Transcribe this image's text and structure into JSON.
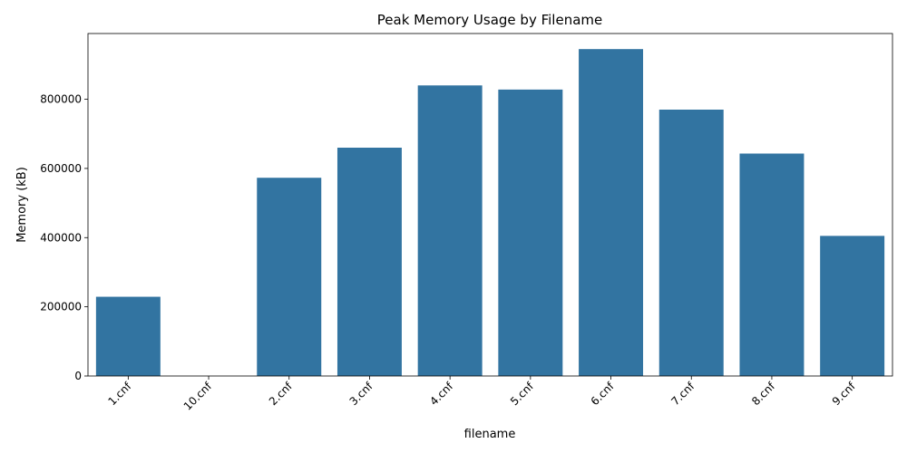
{
  "chart_data": {
    "type": "bar",
    "title": "Peak Memory Usage by Filename",
    "xlabel": "filename",
    "ylabel": "Memory (kB)",
    "categories": [
      "1.cnf",
      "10.cnf",
      "2.cnf",
      "3.cnf",
      "4.cnf",
      "5.cnf",
      "6.cnf",
      "7.cnf",
      "8.cnf",
      "9.cnf"
    ],
    "values": [
      229000,
      0,
      573000,
      660000,
      840000,
      828000,
      945000,
      770000,
      643000,
      405000
    ],
    "ylim": [
      0,
      990000
    ],
    "yticks": [
      0,
      200000,
      400000,
      600000,
      800000
    ],
    "ytick_labels": [
      "0",
      "200000",
      "400000",
      "600000",
      "800000"
    ],
    "bar_color": "#3274a1",
    "grid": false,
    "legend": "none"
  }
}
